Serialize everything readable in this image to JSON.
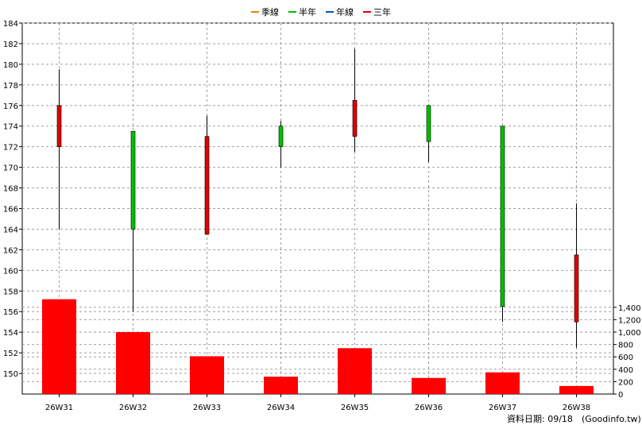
{
  "chart_data": {
    "type": "candlestick",
    "legend": [
      {
        "label": "季線",
        "color": "#f08000"
      },
      {
        "label": "半年",
        "color": "#00c000"
      },
      {
        "label": "年線",
        "color": "#0050d0"
      },
      {
        "label": "三年",
        "color": "#e00000"
      }
    ],
    "categories": [
      "26W31",
      "26W32",
      "26W33",
      "26W34",
      "26W35",
      "26W36",
      "26W37",
      "26W38"
    ],
    "candles": [
      {
        "open": 172.0,
        "high": 179.5,
        "low": 164.0,
        "close": 176.0
      },
      {
        "open": 173.5,
        "high": 173.5,
        "low": 156.0,
        "close": 164.0
      },
      {
        "open": 163.5,
        "high": 175.0,
        "low": 163.5,
        "close": 173.0
      },
      {
        "open": 174.0,
        "high": 174.5,
        "low": 170.0,
        "close": 172.0
      },
      {
        "open": 173.0,
        "high": 181.5,
        "low": 171.5,
        "close": 176.5
      },
      {
        "open": 176.0,
        "high": 176.0,
        "low": 170.5,
        "close": 172.5
      },
      {
        "open": 174.0,
        "high": 174.0,
        "low": 155.0,
        "close": 156.5
      },
      {
        "open": 155.0,
        "high": 166.5,
        "low": 152.5,
        "close": 161.5
      }
    ],
    "volume": [
      1530,
      1000,
      610,
      280,
      740,
      260,
      350,
      130
    ],
    "price_axis": {
      "min": 148,
      "max": 184,
      "ticks": [
        150,
        152,
        154,
        156,
        158,
        160,
        162,
        164,
        166,
        168,
        170,
        172,
        174,
        176,
        178,
        180,
        182,
        184
      ]
    },
    "volume_axis": {
      "min": 0,
      "max": 1500,
      "ticks": [
        0,
        200,
        400,
        600,
        800,
        1000,
        1200,
        1400
      ],
      "tick_labels": [
        "0",
        "200",
        "400",
        "600",
        "800",
        "1,000",
        "1,200",
        "1,400"
      ]
    },
    "colors": {
      "up": "#e00000",
      "down": "#00c000",
      "wick": "#000000",
      "volume": "#ff0000",
      "grid": "#a0a0a0"
    },
    "grid": true,
    "legend_position": "top-center"
  },
  "footer": {
    "date_label": "資料日期: 09/18",
    "source": "(Goodinfo.tw)"
  }
}
